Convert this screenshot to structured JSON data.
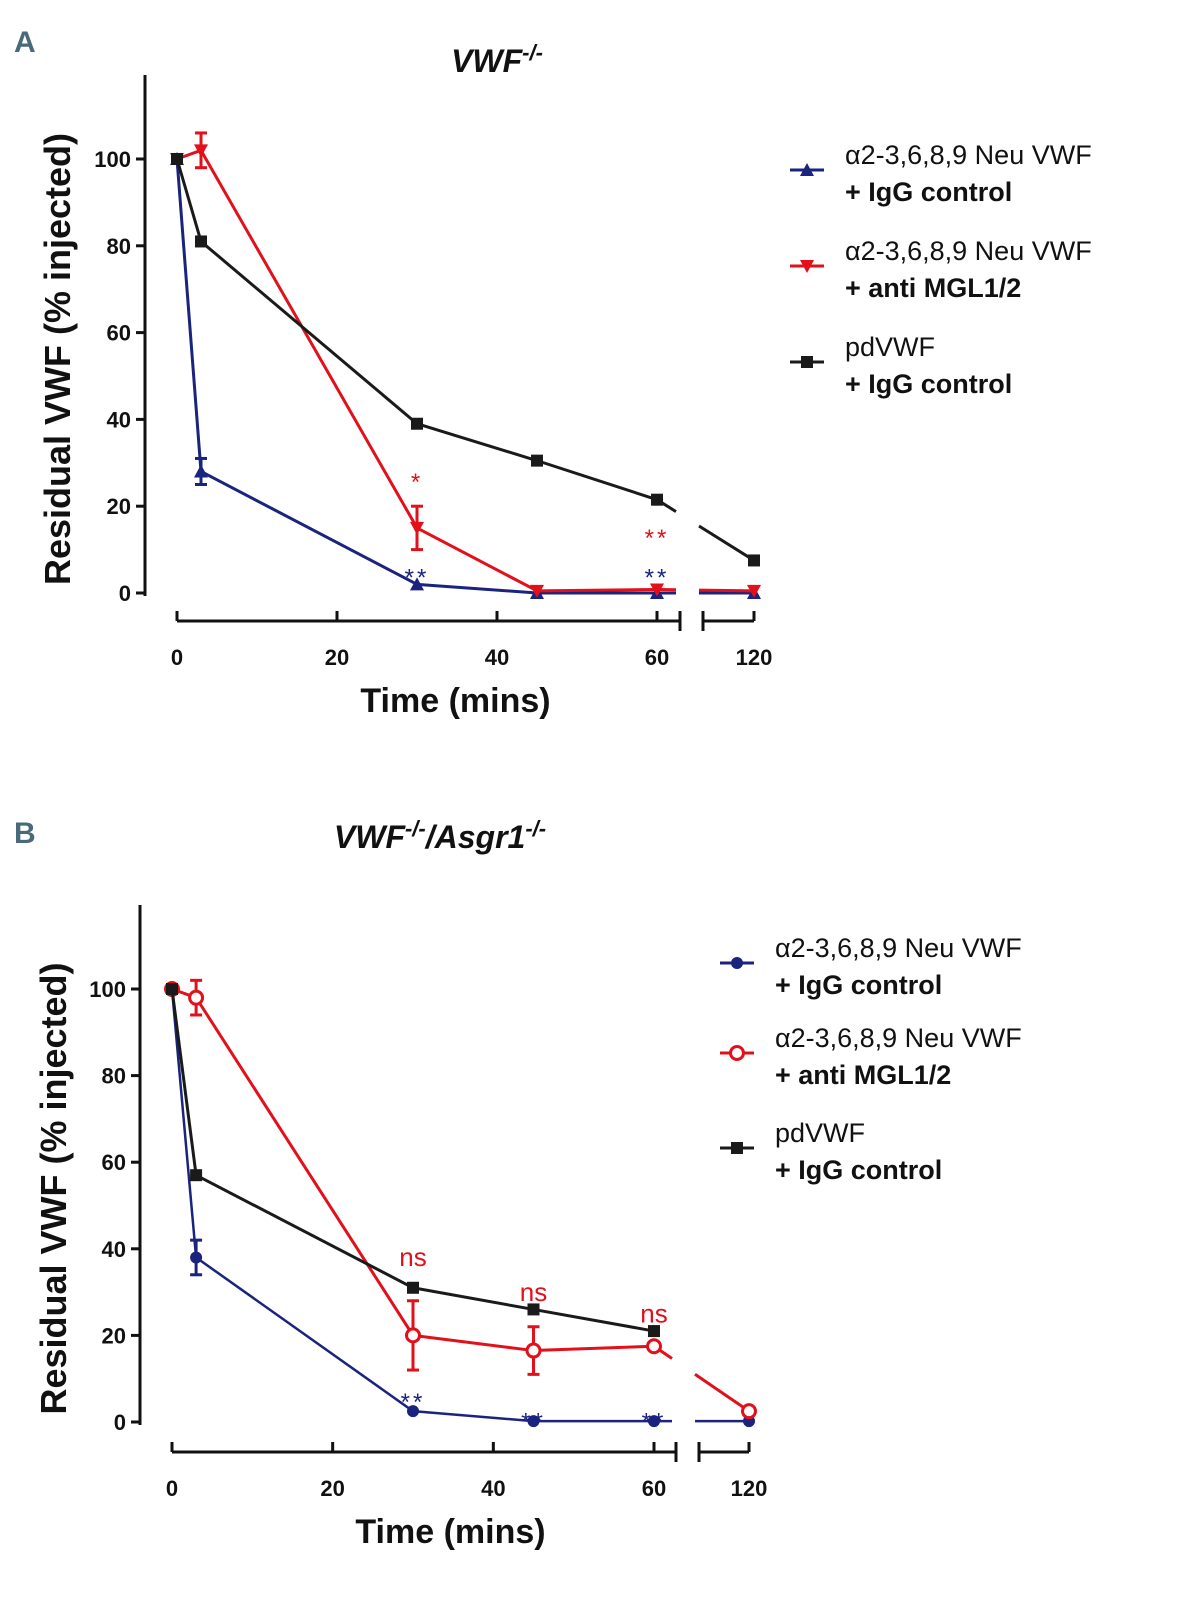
{
  "chart_data": [
    {
      "type": "line",
      "panel_label": "A",
      "title": "VWF",
      "title_sup": "-/-",
      "xlabel": "Time (mins)",
      "ylabel": "Residual VWF (% injected)",
      "xticks": [
        0,
        20,
        40,
        60,
        120
      ],
      "yticks": [
        0,
        20,
        40,
        60,
        80,
        100
      ],
      "ylim": [
        0,
        115
      ],
      "x_axis_break": [
        63,
        117
      ],
      "grid": false,
      "legend_position": "right",
      "series": [
        {
          "name_line1": "α2-3,6,8,9 Neu VWF",
          "name_line2": "+ IgG control",
          "color": "#1a237e",
          "marker": "triangle-up",
          "x": [
            0,
            3,
            30,
            45,
            60,
            120
          ],
          "y": [
            100,
            28,
            2,
            0,
            0,
            0
          ],
          "err": [
            0,
            3,
            0,
            0,
            0,
            0
          ]
        },
        {
          "name_line1": "α2-3,6,8,9 Neu VWF",
          "name_line2": "+ anti MGL1/2",
          "color": "#e2101a",
          "marker": "triangle-down",
          "x": [
            0,
            3,
            30,
            45,
            60,
            120
          ],
          "y": [
            100,
            102,
            15,
            0.5,
            0.8,
            0.5
          ],
          "err": [
            0,
            4,
            5,
            0,
            0,
            0
          ]
        },
        {
          "name_line1": "pdVWF",
          "name_line2": "+ IgG control",
          "color": "#1a1a1a",
          "marker": "square",
          "x": [
            0,
            3,
            30,
            45,
            60,
            120
          ],
          "y": [
            100,
            81,
            39,
            30.5,
            21.5,
            7.5
          ],
          "err": [
            0,
            0,
            0,
            0,
            0,
            0
          ]
        }
      ],
      "annotations": [
        {
          "text": "*",
          "x": 30,
          "y": 27,
          "color": "#e2101a"
        },
        {
          "text": "**",
          "x": 60,
          "y": 14,
          "color": "#e2101a"
        },
        {
          "text": "**",
          "x": 30,
          "y": 5,
          "color": "#1a237e"
        },
        {
          "text": "**",
          "x": 60,
          "y": 5,
          "color": "#1a237e"
        }
      ]
    },
    {
      "type": "line",
      "panel_label": "B",
      "title": "VWF",
      "title_sup": "-/-",
      "title_mid": "/Asgr1",
      "title_sup2": "-/-",
      "xlabel": "Time (mins)",
      "ylabel": "Residual VWF (% injected)",
      "xticks": [
        0,
        20,
        40,
        60,
        120
      ],
      "yticks": [
        0,
        20,
        40,
        60,
        80,
        100
      ],
      "ylim": [
        0,
        118
      ],
      "x_axis_break": [
        63,
        117
      ],
      "grid": false,
      "legend_position": "right",
      "series": [
        {
          "name_line1": "α2-3,6,8,9 Neu VWF",
          "name_line2": "+ IgG control",
          "color": "#1a237e",
          "marker": "circle",
          "x": [
            0,
            3,
            30,
            45,
            60,
            120
          ],
          "y": [
            100,
            38,
            2.5,
            0.2,
            0.2,
            0.2
          ],
          "err": [
            0,
            4,
            0,
            0,
            0,
            0
          ]
        },
        {
          "name_line1": "α2-3,6,8,9 Neu VWF",
          "name_line2": "+ anti MGL1/2",
          "color": "#e2101a",
          "marker": "open-circle",
          "x": [
            0,
            3,
            30,
            45,
            60,
            120
          ],
          "y": [
            100,
            98,
            20,
            16.5,
            17.5,
            2.5
          ],
          "err": [
            0,
            4,
            8,
            5.5,
            0,
            0
          ]
        },
        {
          "name_line1": "pdVWF",
          "name_line2": "+ IgG control",
          "color": "#1a1a1a",
          "marker": "square",
          "x": [
            0,
            3,
            30,
            45,
            60
          ],
          "y": [
            100,
            57,
            31,
            26,
            21
          ],
          "err": [
            0,
            0,
            0,
            0,
            0
          ]
        }
      ],
      "annotations": [
        {
          "text": "ns",
          "x": 30,
          "y": 36,
          "color": "#e2101a"
        },
        {
          "text": "ns",
          "x": 45,
          "y": 28,
          "color": "#e2101a"
        },
        {
          "text": "ns",
          "x": 60,
          "y": 23,
          "color": "#e2101a"
        },
        {
          "text": "**",
          "x": 30,
          "y": 6,
          "color": "#1a237e"
        },
        {
          "text": "**",
          "x": 45,
          "y": 1.5,
          "color": "#1a237e"
        },
        {
          "text": "**",
          "x": 60,
          "y": 1.5,
          "color": "#1a237e"
        }
      ]
    }
  ]
}
